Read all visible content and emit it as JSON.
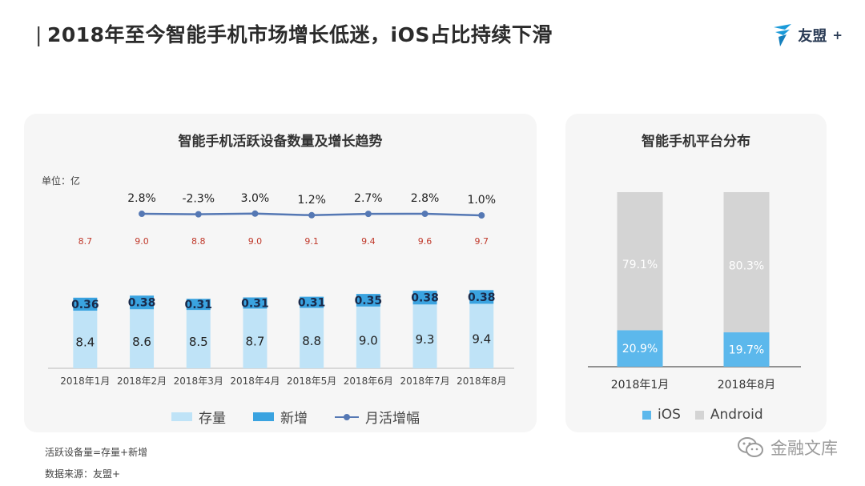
{
  "header": {
    "title": "2018年至今智能手机市场增长低迷，iOS占比持续下滑",
    "title_bar": "|",
    "brand_name": "友盟",
    "brand_plus": "+",
    "brand_color": "#1a9ad9"
  },
  "colors": {
    "stock": "#bfe3f7",
    "new": "#3aa3e0",
    "line": "#5578b4",
    "stock_top_label": "#c0392b",
    "ios": "#5cb8ec",
    "android": "#d4d4d4",
    "panel_bg": "#f6f6f6"
  },
  "chart_data": [
    {
      "type": "bar",
      "title": "智能手机活跃设备数量及增长趋势",
      "unit_label": "单位：亿",
      "categories": [
        "2018年1月",
        "2018年2月",
        "2018年3月",
        "2018年4月",
        "2018年5月",
        "2018年6月",
        "2018年7月",
        "2018年8月"
      ],
      "stacked": true,
      "series": [
        {
          "name": "存量",
          "values": [
            8.4,
            8.6,
            8.5,
            8.7,
            8.8,
            9.0,
            9.3,
            9.4
          ],
          "value_labels": [
            "8.4",
            "8.6",
            "8.5",
            "8.7",
            "8.8",
            "9.0",
            "9.3",
            "9.4"
          ]
        },
        {
          "name": "新增",
          "values": [
            0.36,
            0.38,
            0.31,
            0.31,
            0.31,
            0.35,
            0.38,
            0.38
          ],
          "value_labels": [
            "0.36",
            "0.38",
            "0.31",
            "0.31",
            "0.31",
            "0.35",
            "0.38",
            "0.38"
          ]
        }
      ],
      "totals": [
        8.7,
        9.0,
        8.8,
        9.0,
        9.1,
        9.4,
        9.6,
        9.7
      ],
      "total_labels": [
        "8.7",
        "9.0",
        "8.8",
        "9.0",
        "9.1",
        "9.4",
        "9.6",
        "9.7"
      ],
      "line_series": {
        "name": "月活增幅",
        "values": [
          2.8,
          2.8,
          -2.3,
          3.0,
          1.2,
          2.7,
          2.8,
          1.0
        ],
        "labels": [
          "",
          "2.8%",
          "-2.3%",
          "3.0%",
          "1.2%",
          "2.7%",
          "2.8%",
          "1.0%"
        ],
        "starts_at_index": 1
      },
      "legend": [
        "存量",
        "新增",
        "月活增幅"
      ],
      "legend_position": "bottom"
    },
    {
      "type": "bar",
      "title": "智能手机平台分布",
      "categories": [
        "2018年1月",
        "2018年8月"
      ],
      "stacked": true,
      "percent": true,
      "series": [
        {
          "name": "iOS",
          "values": [
            20.9,
            19.7
          ],
          "value_labels": [
            "20.9%",
            "19.7%"
          ]
        },
        {
          "name": "Android",
          "values": [
            79.1,
            80.3
          ],
          "value_labels": [
            "79.1%",
            "80.3%"
          ]
        }
      ],
      "legend": [
        "iOS",
        "Android"
      ],
      "legend_position": "bottom"
    }
  ],
  "notes": {
    "formula": "活跃设备量=存量+新增",
    "source": "数据来源：友盟+"
  },
  "watermark": {
    "text": "金融文库",
    "icon": "wechat-icon"
  }
}
